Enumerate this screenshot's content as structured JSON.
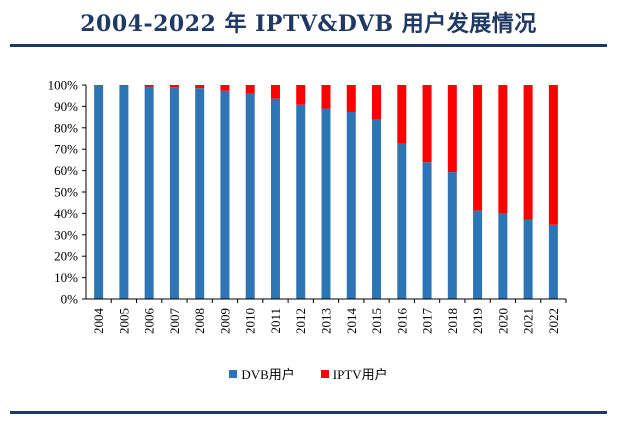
{
  "title": "2004-2022 年 IPTV&DVB 用户发展情况",
  "colors": {
    "dvb": "#2e75b6",
    "iptv": "#ff0000",
    "rule": "#1f3864"
  },
  "chart_data": {
    "type": "bar",
    "stacked": true,
    "percent": true,
    "title": "2004-2022 年 IPTV&DVB 用户发展情况",
    "categories": [
      "2004",
      "2005",
      "2006",
      "2007",
      "2008",
      "2009",
      "2010",
      "2011",
      "2012",
      "2013",
      "2014",
      "2015",
      "2016",
      "2017",
      "2018",
      "2019",
      "2020",
      "2021",
      "2022"
    ],
    "series": [
      {
        "name": "DVB用户",
        "color": "#2e75b6",
        "values": [
          99.8,
          99.6,
          99.3,
          99.0,
          98.5,
          97.3,
          95.9,
          93.6,
          90.8,
          89.0,
          87.4,
          83.8,
          72.6,
          63.9,
          59.3,
          41.3,
          40.0,
          37.0,
          34.7
        ]
      },
      {
        "name": "IPTV用户",
        "color": "#ff0000",
        "values": [
          0.2,
          0.4,
          0.7,
          1.0,
          1.5,
          2.7,
          4.1,
          6.4,
          9.2,
          11.0,
          12.6,
          16.2,
          27.4,
          36.1,
          40.7,
          58.7,
          60.0,
          63.0,
          65.3
        ]
      }
    ],
    "ylim": [
      0,
      100
    ],
    "yticks": [
      "0%",
      "10%",
      "20%",
      "30%",
      "40%",
      "50%",
      "60%",
      "70%",
      "80%",
      "90%",
      "100%"
    ],
    "xlabel": "",
    "ylabel": "",
    "legend_position": "bottom"
  }
}
